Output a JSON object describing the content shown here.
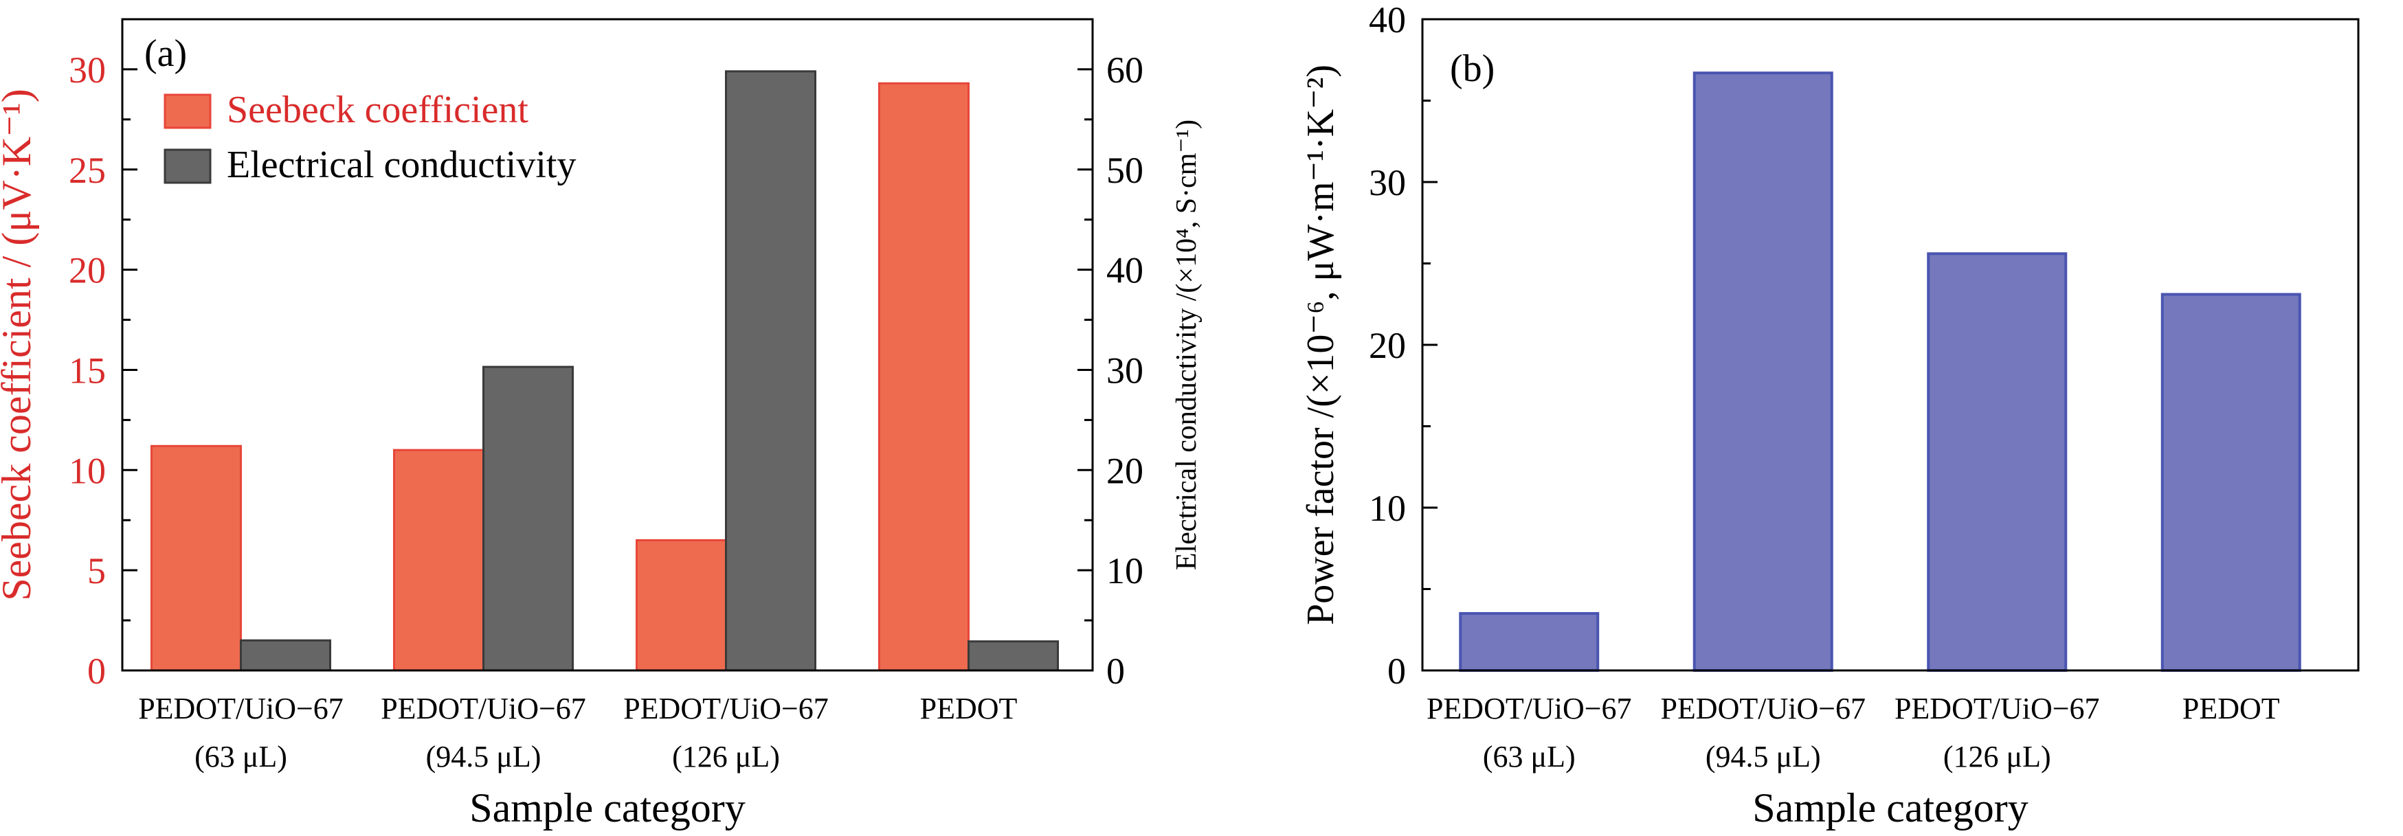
{
  "chart_data": [
    {
      "type": "bar",
      "panel_label": "(a)",
      "categories": [
        [
          "PEDOT/UiO−67",
          "(63 μL)"
        ],
        [
          "PEDOT/UiO−67",
          "(94.5 μL)"
        ],
        [
          "PEDOT/UiO−67",
          "(126 μL)"
        ],
        [
          "PEDOT"
        ]
      ],
      "xlabel": "Sample category",
      "ylabel_left": "Seebeck coefficient / (μV·K⁻¹)",
      "ylabel_right": "Electrical conductivity /(×10⁴, S·cm⁻¹)",
      "ylim_left": [
        0,
        32.5
      ],
      "ylim_right": [
        0,
        65
      ],
      "yticks_left": [
        0,
        5,
        10,
        15,
        20,
        25,
        30
      ],
      "yticks_right": [
        0,
        10,
        20,
        30,
        40,
        50,
        60
      ],
      "legend_position": "top-left",
      "series": [
        {
          "name": "Seebeck coefficient",
          "axis": "left",
          "color": "#EE6B50",
          "edge": "#E8463A",
          "values": [
            11.2,
            11.0,
            6.5,
            29.3
          ]
        },
        {
          "name": "Electrical conductivity",
          "axis": "right",
          "color": "#666666",
          "edge": "#3A3A3A",
          "values": [
            3.0,
            30.3,
            59.8,
            2.9
          ]
        }
      ],
      "colors": {
        "left_axis": "#D92B2B",
        "axis": "#000000"
      }
    },
    {
      "type": "bar",
      "panel_label": "(b)",
      "categories": [
        [
          "PEDOT/UiO−67",
          "(63 μL)"
        ],
        [
          "PEDOT/UiO−67",
          "(94.5 μL)"
        ],
        [
          "PEDOT/UiO−67",
          "(126 μL)"
        ],
        [
          "PEDOT"
        ]
      ],
      "xlabel": "Sample category",
      "ylabel": "Power factor /(×10⁻⁶, μW·m⁻¹·K⁻²)",
      "ylim": [
        0,
        40
      ],
      "yticks": [
        0,
        10,
        20,
        30,
        40
      ],
      "series": [
        {
          "name": "",
          "color": "#7578BC",
          "edge": "#4A55B0",
          "values": [
            3.5,
            36.7,
            25.6,
            23.1
          ]
        }
      ]
    }
  ]
}
